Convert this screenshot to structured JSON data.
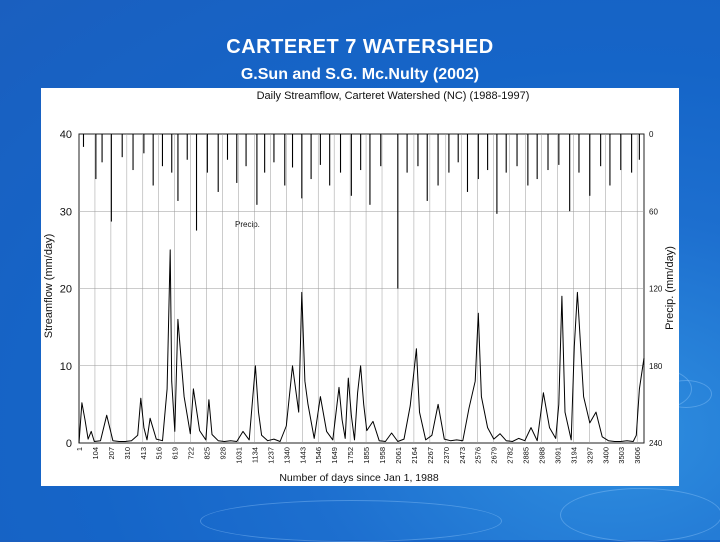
{
  "slide": {
    "title": "CARTERET 7 WATERSHED",
    "subtitle": "G.Sun and S.G. Mc.Nulty (2002)"
  },
  "chart_data": {
    "type": "line",
    "title": "Daily Streamflow, Carteret Watershed (NC) (1988-1997)",
    "xlabel": "Number of days since Jan 1, 1988",
    "ylabel": "Streamflow (mm/day)",
    "y2label": "Precip. (mm/day)",
    "annotation": "Precip.",
    "xlim": [
      1,
      3650
    ],
    "ylim": [
      0,
      40
    ],
    "y2lim": [
      0,
      240
    ],
    "y2_inverted": true,
    "x_ticks": [
      1,
      104,
      207,
      310,
      413,
      516,
      619,
      722,
      825,
      928,
      1031,
      1134,
      1237,
      1340,
      1443,
      1546,
      1649,
      1752,
      1855,
      1958,
      2061,
      2164,
      2267,
      2370,
      2473,
      2576,
      2679,
      2782,
      2885,
      2988,
      3091,
      3194,
      3297,
      3400,
      3503,
      3606
    ],
    "y_ticks": [
      0,
      10,
      20,
      30,
      40
    ],
    "y2_ticks": [
      0,
      60,
      120,
      180,
      240
    ],
    "grid": true,
    "series": [
      {
        "name": "Streamflow",
        "color": "#000000",
        "x": [
          1,
          20,
          40,
          60,
          80,
          100,
          140,
          180,
          220,
          260,
          300,
          340,
          380,
          400,
          420,
          440,
          460,
          500,
          540,
          570,
          590,
          600,
          620,
          640,
          680,
          720,
          740,
          780,
          820,
          840,
          860,
          900,
          940,
          980,
          1020,
          1060,
          1100,
          1140,
          1160,
          1180,
          1220,
          1260,
          1300,
          1340,
          1380,
          1420,
          1440,
          1460,
          1480,
          1520,
          1560,
          1600,
          1640,
          1680,
          1700,
          1720,
          1740,
          1760,
          1780,
          1800,
          1820,
          1840,
          1860,
          1900,
          1940,
          1980,
          2020,
          2060,
          2100,
          2140,
          2180,
          2200,
          2240,
          2280,
          2320,
          2360,
          2400,
          2440,
          2480,
          2520,
          2560,
          2580,
          2600,
          2640,
          2680,
          2720,
          2760,
          2800,
          2840,
          2880,
          2920,
          2960,
          3000,
          3040,
          3080,
          3100,
          3120,
          3140,
          3180,
          3200,
          3220,
          3260,
          3300,
          3340,
          3380,
          3420,
          3460,
          3500,
          3540,
          3580,
          3600,
          3620,
          3650
        ],
        "y": [
          0,
          5.2,
          3.0,
          0.5,
          1.5,
          0.2,
          0.3,
          3.6,
          0.3,
          0.2,
          0.2,
          0.3,
          1.0,
          5.8,
          2.0,
          0.4,
          3.2,
          0.5,
          0.3,
          7.0,
          25.0,
          8.0,
          1.5,
          16.0,
          6.0,
          1.2,
          7.0,
          1.6,
          0.4,
          5.6,
          1.1,
          0.3,
          0.2,
          0.3,
          0.2,
          1.5,
          0.4,
          10.0,
          4.0,
          1.0,
          0.3,
          0.5,
          0.2,
          2.2,
          10.0,
          4.0,
          19.5,
          8.0,
          5.0,
          0.6,
          6.0,
          1.5,
          0.4,
          7.2,
          3.0,
          0.6,
          8.4,
          3.5,
          0.4,
          6.5,
          10.0,
          5.0,
          1.6,
          2.8,
          0.3,
          0.2,
          1.3,
          0.2,
          0.5,
          4.8,
          12.2,
          4.0,
          0.4,
          1.0,
          5.0,
          0.5,
          0.3,
          0.4,
          0.3,
          4.5,
          8.0,
          16.8,
          6.0,
          2.0,
          0.5,
          1.2,
          0.3,
          0.2,
          0.6,
          0.3,
          2.0,
          0.3,
          6.5,
          2.0,
          0.6,
          5.0,
          19.0,
          4.0,
          0.4,
          12.5,
          19.5,
          6.0,
          2.6,
          4.0,
          0.8,
          0.3,
          0.2,
          0.2,
          0.3,
          0.2,
          1.0,
          7.0,
          11.0
        ]
      },
      {
        "name": "Precip.",
        "color": "#000000",
        "x": [
          30,
          110,
          150,
          210,
          280,
          350,
          420,
          480,
          540,
          600,
          640,
          700,
          760,
          830,
          900,
          960,
          1020,
          1080,
          1150,
          1200,
          1260,
          1330,
          1380,
          1440,
          1500,
          1560,
          1620,
          1690,
          1760,
          1820,
          1880,
          1950,
          2060,
          2120,
          2190,
          2250,
          2320,
          2390,
          2450,
          2510,
          2580,
          2640,
          2700,
          2760,
          2830,
          2900,
          2960,
          3030,
          3100,
          3170,
          3230,
          3300,
          3370,
          3430,
          3500,
          3570,
          3620
        ],
        "y": [
          10,
          35,
          22,
          68,
          18,
          28,
          15,
          40,
          25,
          30,
          52,
          20,
          75,
          30,
          45,
          20,
          38,
          25,
          55,
          30,
          22,
          40,
          26,
          50,
          35,
          24,
          40,
          30,
          48,
          28,
          55,
          25,
          120,
          30,
          25,
          52,
          40,
          30,
          22,
          45,
          35,
          28,
          62,
          30,
          25,
          40,
          35,
          28,
          24,
          60,
          30,
          48,
          25,
          40,
          28,
          30,
          20
        ]
      }
    ]
  }
}
